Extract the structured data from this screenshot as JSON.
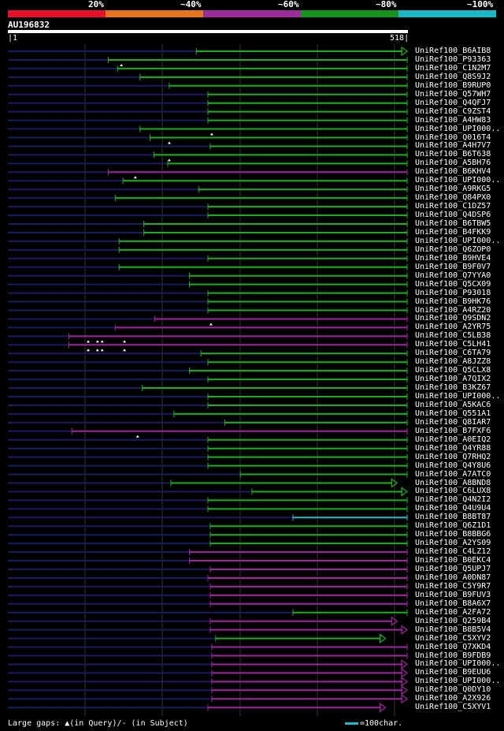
{
  "scale": {
    "labels": [
      "20%",
      "~40%",
      "~60%",
      "~80%",
      "~100%"
    ],
    "colors": [
      "#e8112d",
      "#e8731e",
      "#9b2c9b",
      "#16921e",
      "#17b9c6"
    ]
  },
  "query": {
    "id": "AU196832",
    "start": "1",
    "end": "518",
    "length": 518
  },
  "hits": [
    {
      "label": "UniRef100_B6AIB8",
      "color": "green",
      "start": 245,
      "end": 518,
      "arrow": true,
      "gaps": []
    },
    {
      "label": "UniRef100_P93363",
      "color": "green",
      "start": 131,
      "end": 518,
      "arrow": false,
      "gaps": [
        148
      ]
    },
    {
      "label": "UniRef100_C1N2M7",
      "color": "green",
      "start": 143,
      "end": 518,
      "arrow": false,
      "gaps": []
    },
    {
      "label": "UniRef100_Q8S9J2",
      "color": "green",
      "start": 172,
      "end": 518,
      "arrow": false,
      "gaps": []
    },
    {
      "label": "UniRef100_B9RUP0",
      "color": "green",
      "start": 210,
      "end": 518,
      "arrow": false,
      "gaps": []
    },
    {
      "label": "UniRef100_Q57WH7",
      "color": "green",
      "start": 260,
      "end": 518,
      "arrow": false,
      "gaps": []
    },
    {
      "label": "UniRef100_Q4QFJ7",
      "color": "green",
      "start": 260,
      "end": 518,
      "arrow": false,
      "gaps": []
    },
    {
      "label": "UniRef100_C9ZST4",
      "color": "green",
      "start": 260,
      "end": 518,
      "arrow": false,
      "gaps": []
    },
    {
      "label": "UniRef100_A4HW83",
      "color": "green",
      "start": 260,
      "end": 518,
      "arrow": false,
      "gaps": []
    },
    {
      "label": "UniRef100_UPI000..",
      "color": "green",
      "start": 172,
      "end": 518,
      "arrow": false,
      "gaps": [
        265
      ]
    },
    {
      "label": "UniRef100_Q016T4",
      "color": "green",
      "start": 185,
      "end": 518,
      "arrow": false,
      "gaps": [
        210
      ]
    },
    {
      "label": "UniRef100_A4H7V7",
      "color": "green",
      "start": 263,
      "end": 518,
      "arrow": false,
      "gaps": []
    },
    {
      "label": "UniRef100_B6T638",
      "color": "green",
      "start": 190,
      "end": 518,
      "arrow": false,
      "gaps": [
        210
      ]
    },
    {
      "label": "UniRef100_A5BH76",
      "color": "green",
      "start": 208,
      "end": 518,
      "arrow": false,
      "gaps": []
    },
    {
      "label": "UniRef100_B6KHV4",
      "color": "purple",
      "start": 131,
      "end": 518,
      "arrow": false,
      "gaps": [
        166
      ]
    },
    {
      "label": "UniRef100_UPI000..",
      "color": "green",
      "start": 150,
      "end": 518,
      "arrow": false,
      "gaps": []
    },
    {
      "label": "UniRef100_A9RKG5",
      "color": "green",
      "start": 248,
      "end": 518,
      "arrow": false,
      "gaps": []
    },
    {
      "label": "UniRef100_Q84PX0",
      "color": "green",
      "start": 140,
      "end": 518,
      "arrow": false,
      "gaps": []
    },
    {
      "label": "UniRef100_C1DZ57",
      "color": "green",
      "start": 260,
      "end": 518,
      "arrow": false,
      "gaps": []
    },
    {
      "label": "UniRef100_Q4DSP6",
      "color": "green",
      "start": 260,
      "end": 518,
      "arrow": false,
      "gaps": []
    },
    {
      "label": "UniRef100_B6TBW5",
      "color": "green",
      "start": 177,
      "end": 518,
      "arrow": false,
      "gaps": []
    },
    {
      "label": "UniRef100_B4FKK9",
      "color": "green",
      "start": 177,
      "end": 518,
      "arrow": false,
      "gaps": []
    },
    {
      "label": "UniRef100_UPI000..",
      "color": "green",
      "start": 145,
      "end": 518,
      "arrow": false,
      "gaps": []
    },
    {
      "label": "UniRef100_Q6ZOP0",
      "color": "green",
      "start": 145,
      "end": 518,
      "arrow": false,
      "gaps": []
    },
    {
      "label": "UniRef100_B9HVE4",
      "color": "green",
      "start": 260,
      "end": 518,
      "arrow": false,
      "gaps": []
    },
    {
      "label": "UniRef100_B9F0V7",
      "color": "green",
      "start": 145,
      "end": 518,
      "arrow": false,
      "gaps": []
    },
    {
      "label": "UniRef100_Q7YYA0",
      "color": "green",
      "start": 236,
      "end": 518,
      "arrow": false,
      "gaps": []
    },
    {
      "label": "UniRef100_Q5CX09",
      "color": "green",
      "start": 236,
      "end": 518,
      "arrow": false,
      "gaps": []
    },
    {
      "label": "UniRef100_P93018",
      "color": "green",
      "start": 260,
      "end": 518,
      "arrow": false,
      "gaps": []
    },
    {
      "label": "UniRef100_B9HK76",
      "color": "green",
      "start": 260,
      "end": 518,
      "arrow": false,
      "gaps": []
    },
    {
      "label": "UniRef100_A4RZ20",
      "color": "green",
      "start": 260,
      "end": 518,
      "arrow": false,
      "gaps": []
    },
    {
      "label": "UniRef100_Q9SDN2",
      "color": "purple",
      "start": 191,
      "end": 518,
      "arrow": false,
      "gaps": [
        264
      ]
    },
    {
      "label": "UniRef100_A2YR75",
      "color": "purple",
      "start": 140,
      "end": 518,
      "arrow": false,
      "gaps": []
    },
    {
      "label": "UniRef100_C5LB38",
      "color": "purple",
      "start": 80,
      "end": 518,
      "arrow": false,
      "gaps": [
        105,
        117,
        123,
        152
      ]
    },
    {
      "label": "UniRef100_C5LH41",
      "color": "purple",
      "start": 80,
      "end": 518,
      "arrow": false,
      "gaps": [
        105,
        117,
        123,
        152
      ]
    },
    {
      "label": "UniRef100_C6TA79",
      "color": "green",
      "start": 251,
      "end": 518,
      "arrow": false,
      "gaps": []
    },
    {
      "label": "UniRef100_A8JZZ8",
      "color": "green",
      "start": 260,
      "end": 518,
      "arrow": false,
      "gaps": []
    },
    {
      "label": "UniRef100_Q5CLX8",
      "color": "green",
      "start": 236,
      "end": 518,
      "arrow": false,
      "gaps": []
    },
    {
      "label": "UniRef100_A7QIX2",
      "color": "green",
      "start": 260,
      "end": 518,
      "arrow": false,
      "gaps": []
    },
    {
      "label": "UniRef100_B3KZ67",
      "color": "green",
      "start": 175,
      "end": 518,
      "arrow": false,
      "gaps": []
    },
    {
      "label": "UniRef100_UPI000..",
      "color": "green",
      "start": 260,
      "end": 518,
      "arrow": false,
      "gaps": []
    },
    {
      "label": "UniRef100_A5KAC6",
      "color": "green",
      "start": 260,
      "end": 518,
      "arrow": false,
      "gaps": []
    },
    {
      "label": "UniRef100_Q551A1",
      "color": "green",
      "start": 216,
      "end": 518,
      "arrow": false,
      "gaps": []
    },
    {
      "label": "UniRef100_Q8IAR7",
      "color": "green",
      "start": 282,
      "end": 518,
      "arrow": false,
      "gaps": []
    },
    {
      "label": "UniRef100_B7FXF6",
      "color": "purple",
      "start": 84,
      "end": 518,
      "arrow": false,
      "gaps": [
        169
      ]
    },
    {
      "label": "UniRef100_A0EIQ2",
      "color": "green",
      "start": 260,
      "end": 518,
      "arrow": false,
      "gaps": []
    },
    {
      "label": "UniRef100_Q4YR88",
      "color": "green",
      "start": 260,
      "end": 518,
      "arrow": false,
      "gaps": []
    },
    {
      "label": "UniRef100_Q7RHQ2",
      "color": "green",
      "start": 260,
      "end": 518,
      "arrow": false,
      "gaps": []
    },
    {
      "label": "UniRef100_Q4Y8U6",
      "color": "green",
      "start": 260,
      "end": 518,
      "arrow": false,
      "gaps": []
    },
    {
      "label": "UniRef100_A7ATC0",
      "color": "green",
      "start": 302,
      "end": 518,
      "arrow": false,
      "gaps": []
    },
    {
      "label": "UniRef100_A8BND8",
      "color": "green",
      "start": 212,
      "end": 505,
      "arrow": true,
      "gaps": []
    },
    {
      "label": "UniRef100_C6LUX8",
      "color": "green",
      "start": 317,
      "end": 518,
      "arrow": true,
      "gaps": []
    },
    {
      "label": "UniRef100_Q4N2I2",
      "color": "green",
      "start": 260,
      "end": 518,
      "arrow": false,
      "gaps": []
    },
    {
      "label": "UniRef100_Q4U9U4",
      "color": "green",
      "start": 260,
      "end": 518,
      "arrow": false,
      "gaps": []
    },
    {
      "label": "UniRef100_B8BT87",
      "color": "cyan",
      "start": 370,
      "end": 518,
      "arrow": false,
      "gaps": []
    },
    {
      "label": "UniRef100_Q6Z1D1",
      "color": "green",
      "start": 263,
      "end": 518,
      "arrow": false,
      "gaps": []
    },
    {
      "label": "UniRef100_B8BBG6",
      "color": "green",
      "start": 263,
      "end": 518,
      "arrow": false,
      "gaps": []
    },
    {
      "label": "UniRef100_A2YS09",
      "color": "green",
      "start": 263,
      "end": 518,
      "arrow": false,
      "gaps": []
    },
    {
      "label": "UniRef100_C4LZ12",
      "color": "purple",
      "start": 236,
      "end": 518,
      "arrow": false,
      "gaps": []
    },
    {
      "label": "UniRef100_B0EKC4",
      "color": "purple",
      "start": 236,
      "end": 518,
      "arrow": false,
      "gaps": []
    },
    {
      "label": "UniRef100_Q5UPJ7",
      "color": "purple",
      "start": 263,
      "end": 518,
      "arrow": false,
      "gaps": []
    },
    {
      "label": "UniRef100_A0DN87",
      "color": "purple",
      "start": 260,
      "end": 518,
      "arrow": false,
      "gaps": []
    },
    {
      "label": "UniRef100_C5Y9R7",
      "color": "purple",
      "start": 263,
      "end": 518,
      "arrow": false,
      "gaps": []
    },
    {
      "label": "UniRef100_B9FUV3",
      "color": "purple",
      "start": 263,
      "end": 518,
      "arrow": false,
      "gaps": []
    },
    {
      "label": "UniRef100_B8A6X7",
      "color": "purple",
      "start": 263,
      "end": 518,
      "arrow": false,
      "gaps": []
    },
    {
      "label": "UniRef100_A2FA72",
      "color": "green",
      "start": 370,
      "end": 518,
      "arrow": false,
      "gaps": []
    },
    {
      "label": "UniRef100_Q259B4",
      "color": "purple",
      "start": 263,
      "end": 505,
      "arrow": true,
      "gaps": []
    },
    {
      "label": "UniRef100_B8B5V4",
      "color": "purple",
      "start": 263,
      "end": 518,
      "arrow": true,
      "gaps": []
    },
    {
      "label": "UniRef100_C5XYV2",
      "color": "green",
      "start": 270,
      "end": 490,
      "arrow": true,
      "gaps": []
    },
    {
      "label": "UniRef100_Q7XKD4",
      "color": "purple",
      "start": 265,
      "end": 518,
      "arrow": false,
      "gaps": []
    },
    {
      "label": "UniRef100_B9FDB9",
      "color": "purple",
      "start": 265,
      "end": 518,
      "arrow": false,
      "gaps": []
    },
    {
      "label": "UniRef100_UPI000..",
      "color": "purple",
      "start": 265,
      "end": 518,
      "arrow": true,
      "gaps": []
    },
    {
      "label": "UniRef100_B9EUU6",
      "color": "purple",
      "start": 265,
      "end": 518,
      "arrow": true,
      "gaps": []
    },
    {
      "label": "UniRef100_UPI000..",
      "color": "purple",
      "start": 265,
      "end": 518,
      "arrow": true,
      "gaps": []
    },
    {
      "label": "UniRef100_Q0DY10",
      "color": "purple",
      "start": 265,
      "end": 518,
      "arrow": true,
      "gaps": []
    },
    {
      "label": "UniRef100_A2X926",
      "color": "purple",
      "start": 265,
      "end": 518,
      "arrow": true,
      "gaps": []
    },
    {
      "label": "UniRef100_C5XYV1",
      "color": "purple",
      "start": 260,
      "end": 490,
      "arrow": true,
      "gaps": []
    }
  ],
  "colors": {
    "green": "#16b516",
    "purple": "#a521a5",
    "cyan": "#17becf",
    "unaligned": "#1a1a66"
  },
  "footer": {
    "left": "Large gaps: ▲(in Query)/- (in Subject)",
    "right": "=100char."
  }
}
